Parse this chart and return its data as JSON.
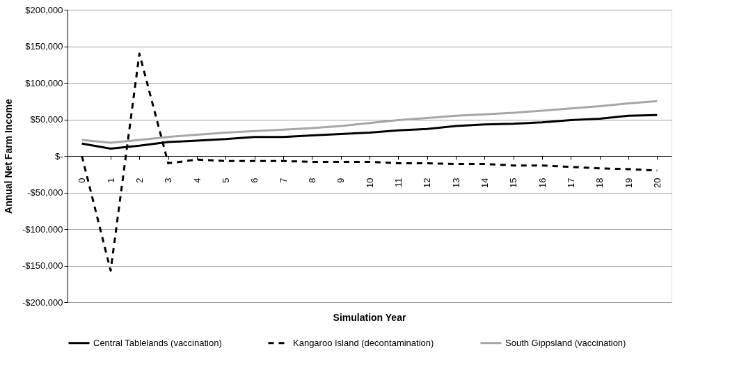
{
  "chart_data": {
    "type": "line",
    "xlabel": "Simulation Year",
    "ylabel": "Annual Net Farm Income",
    "categories": [
      "0",
      "1",
      "2",
      "3",
      "4",
      "5",
      "6",
      "7",
      "8",
      "9",
      "10",
      "11",
      "12",
      "13",
      "14",
      "15",
      "16",
      "17",
      "18",
      "19",
      "20"
    ],
    "series": [
      {
        "name": "Central Tablelands (vaccination)",
        "color": "#000000",
        "line_style": "solid",
        "values": [
          17000,
          10000,
          14000,
          19000,
          21000,
          23000,
          26000,
          26000,
          28000,
          30000,
          32000,
          35000,
          37000,
          41000,
          43000,
          44000,
          46000,
          49000,
          51000,
          55000,
          56000
        ]
      },
      {
        "name": "Kangaroo Island (decontamination)",
        "color": "#000000",
        "line_style": "dashed",
        "values": [
          0,
          -157000,
          140000,
          -10000,
          -5000,
          -7000,
          -7000,
          -7000,
          -8000,
          -8000,
          -8000,
          -10000,
          -10000,
          -11000,
          -11000,
          -13000,
          -13000,
          -15000,
          -17000,
          -18000,
          -20000
        ]
      },
      {
        "name": "South Gippsland (vaccination)",
        "color": "#a6a6a6",
        "line_style": "solid",
        "values": [
          22000,
          18000,
          22000,
          26000,
          29000,
          32000,
          34000,
          36000,
          38000,
          41000,
          45000,
          49000,
          52000,
          55000,
          57000,
          59000,
          62000,
          65000,
          68000,
          72000,
          75000
        ]
      }
    ],
    "ylim": [
      -200000,
      200000
    ],
    "yticks": [
      {
        "value": -200000,
        "label": "-$200,000"
      },
      {
        "value": -150000,
        "label": "-$150,000"
      },
      {
        "value": -100000,
        "label": "-$100,000"
      },
      {
        "value": -50000,
        "label": "-$50,000"
      },
      {
        "value": 0,
        "label": "$-"
      },
      {
        "value": 50000,
        "label": "$50,000"
      },
      {
        "value": 100000,
        "label": "$100,000"
      },
      {
        "value": 150000,
        "label": "$150,000"
      },
      {
        "value": 200000,
        "label": "$200,000"
      }
    ],
    "grid": "y",
    "legend": "bottom",
    "marker": "none"
  }
}
